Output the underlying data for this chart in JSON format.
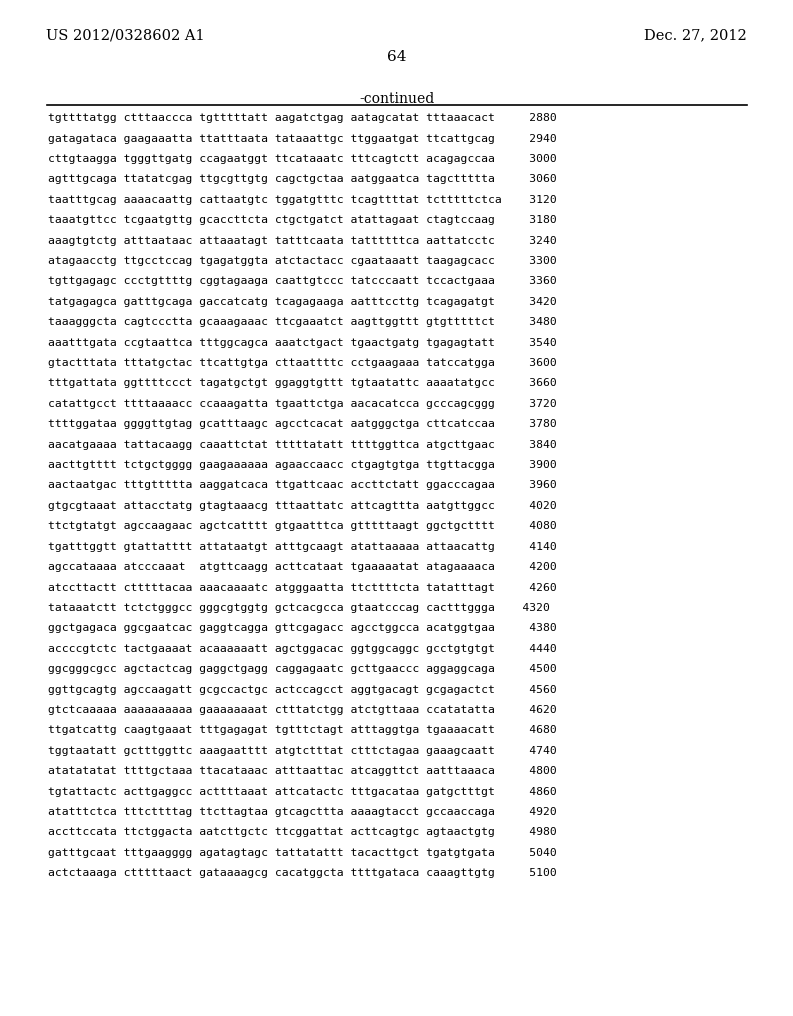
{
  "header_left": "US 2012/0328602 A1",
  "header_right": "Dec. 27, 2012",
  "page_number": "64",
  "continued_label": "-continued",
  "background_color": "#ffffff",
  "text_color": "#000000",
  "sequence_lines": [
    "tgttttatgg ctttaaccca tgtttttatt aagatctgag aatagcatat tttaaacact     2880",
    "gatagataca gaagaaatta ttatttaata tataaattgc ttggaatgat ttcattgcag     2940",
    "cttgtaagga tgggttgatg ccagaatggt ttcataaatc tttcagtctt acagagccaa     3000",
    "agtttgcaga ttatatcgag ttgcgttgtg cagctgctaa aatggaatca tagcttttta     3060",
    "taatttgcag aaaacaattg cattaatgtc tggatgtttc tcagttttat tctttttctca    3120",
    "taaatgttcc tcgaatgttg gcaccttcta ctgctgatct atattagaat ctagtccaag     3180",
    "aaagtgtctg atttaataac attaaatagt tatttcaata tattttttca aattatcctc     3240",
    "atagaacctg ttgcctccag tgagatggta atctactacc cgaataaatt taagagcacc     3300",
    "tgttgagagc ccctgttttg cggtagaaga caattgtccc tatcccaatt tccactgaaa     3360",
    "tatgagagca gatttgcaga gaccatcatg tcagagaaga aatttccttg tcagagatgt     3420",
    "taaagggcta cagtccctta gcaaagaaac ttcgaaatct aagttggttt gtgtttttct     3480",
    "aaatttgata ccgtaattca tttggcagca aaatctgact tgaactgatg tgagagtatt     3540",
    "gtactttata tttatgctac ttcattgtga cttaattttc cctgaagaaa tatccatgga     3600",
    "tttgattata ggttttccct tagatgctgt ggaggtgttt tgtaatattc aaaatatgcc     3660",
    "catattgcct ttttaaaacc ccaaagatta tgaattctga aacacatcca gcccagcggg     3720",
    "ttttggataa ggggttgtag gcatttaagc agcctcacat aatgggctga cttcatccaa     3780",
    "aacatgaaaa tattacaagg caaattctat tttttatatt ttttggttca atgcttgaac     3840",
    "aacttgtttt tctgctgggg gaagaaaaaa agaaccaacc ctgagtgtga ttgttacgga     3900",
    "aactaatgac tttgttttta aaggatcaca ttgattcaac accttctatt ggacccagaa     3960",
    "gtgcgtaaat attacctatg gtagtaaacg tttaattatc attcagttta aatgttggcc     4020",
    "ttctgtatgt agccaagaac agctcatttt gtgaatttca gtttttaagt ggctgctttt     4080",
    "tgatttggtt gtattatttt attataatgt atttgcaagt atattaaaaa attaacattg     4140",
    "agccataaaa atcccaaat  atgttcaagg acttcataat tgaaaaatat atagaaaaca     4200",
    "atccttactt ctttttacaa aaacaaaatc atgggaatta ttcttttcta tatatttagt     4260",
    "tataaatctt tctctgggcc gggcgtggtg gctcacgcca gtaatcccag cactttggga    4320",
    "ggctgagaca ggcgaatcac gaggtcagga gttcgagacc agcctggcca acatggtgaa     4380",
    "accccgtctc tactgaaaat acaaaaaatt agctggacac ggtggcaggc gcctgtgtgt     4440",
    "ggcgggcgcc agctactcag gaggctgagg caggagaatc gcttgaaccc aggaggcaga     4500",
    "ggttgcagtg agccaagatt gcgccactgc actccagcct aggtgacagt gcgagactct     4560",
    "gtctcaaaaa aaaaaaaaaa gaaaaaaaat ctttatctgg atctgttaaa ccatatatta     4620",
    "ttgatcattg caagtgaaat tttgagagat tgtttctagt atttaggtga tgaaaacatt     4680",
    "tggtaatatt gctttggttc aaagaatttt atgtctttat ctttctagaa gaaagcaatt     4740",
    "atatatatat ttttgctaaa ttacataaac atttaattac atcaggttct aatttaaaca     4800",
    "tgtattactc acttgaggcc acttttaaat attcatactc tttgacataa gatgctttgt     4860",
    "atatttctca tttcttttag ttcttagtaa gtcagcttta aaaagtacct gccaaccaga     4920",
    "accttccata ttctggacta aatcttgctc ttcggattat acttcagtgc agtaactgtg     4980",
    "gatttgcaat tttgaagggg agatagtagc tattatattt tacacttgct tgatgtgata     5040",
    "actctaaaga ctttttaact gataaaagcg cacatggcta ttttgataca caaagttgtg     5100"
  ]
}
